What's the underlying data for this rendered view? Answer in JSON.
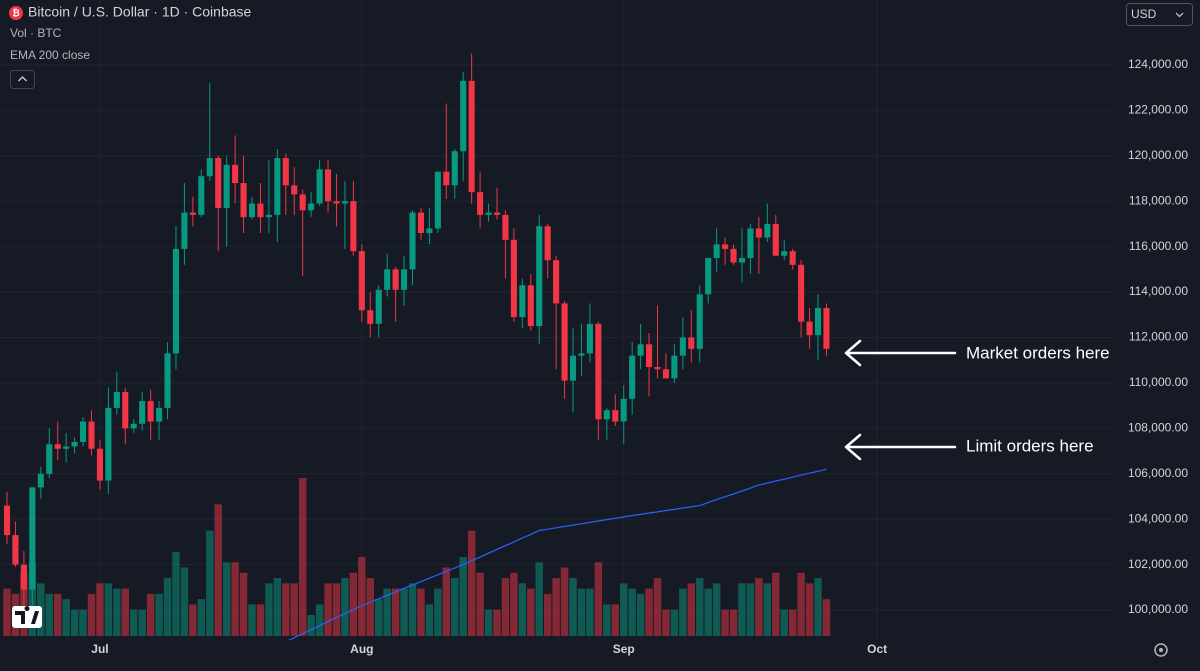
{
  "chart_data": {
    "type": "candlestick",
    "title": "Bitcoin / U.S. Dollar · 1D · Coinbase",
    "volume_label": "Vol · BTC",
    "currency": "USD",
    "up_color": "#089981",
    "down_color": "#f23645",
    "grid": true,
    "xlim": [
      -0.83,
      130.8
    ],
    "ylim": [
      98680,
      126860
    ],
    "xticks": [
      {
        "value": 11,
        "label": "Jul"
      },
      {
        "value": 42,
        "label": "Aug"
      },
      {
        "value": 73,
        "label": "Sep"
      },
      {
        "value": 103,
        "label": "Oct"
      }
    ],
    "yticks": [
      {
        "value": 100000,
        "label": "100,000.00"
      },
      {
        "value": 102000,
        "label": "102,000.00"
      },
      {
        "value": 104000,
        "label": "104,000.00"
      },
      {
        "value": 106000,
        "label": "106,000.00"
      },
      {
        "value": 108000,
        "label": "108,000.00"
      },
      {
        "value": 110000,
        "label": "110,000.00"
      },
      {
        "value": 112000,
        "label": "112,000.00"
      },
      {
        "value": 114000,
        "label": "114,000.00"
      },
      {
        "value": 116000,
        "label": "116,000.00"
      },
      {
        "value": 118000,
        "label": "118,000.00"
      },
      {
        "value": 120000,
        "label": "120,000.00"
      },
      {
        "value": 122000,
        "label": "122,000.00"
      },
      {
        "value": 124000,
        "label": "124,000.00"
      }
    ],
    "open": [
      104600,
      103300,
      102000,
      100900,
      105400,
      106000,
      107300,
      107100,
      107200,
      107400,
      108300,
      107100,
      105700,
      108900,
      109600,
      108000,
      108200,
      109200,
      108300,
      108900,
      111300,
      115900,
      117500,
      117400,
      119100,
      119900,
      117700,
      119600,
      118800,
      117300,
      117900,
      117300,
      117400,
      119900,
      118700,
      118300,
      117600,
      117900,
      119400,
      118000,
      117900,
      118000,
      115800,
      113200,
      112600,
      114100,
      115000,
      114100,
      115000,
      117500,
      116600,
      116800,
      119300,
      118700,
      120200,
      123300,
      118400,
      117400,
      117500,
      117400,
      116300,
      112900,
      114300,
      112500,
      116900,
      115400,
      113500,
      110100,
      111200,
      111300,
      112600,
      108400,
      108800,
      108300,
      109300,
      111200,
      111700,
      110700,
      110600,
      110200,
      111200,
      112000,
      111500,
      113900,
      115500,
      116100,
      115900,
      115300,
      115500,
      116800,
      116400,
      117000,
      115600,
      115800,
      115200,
      112700,
      112100,
      113300
    ],
    "high": [
      105200,
      103900,
      102600,
      105400,
      106300,
      108000,
      108300,
      107800,
      107600,
      108500,
      108800,
      107500,
      109800,
      110500,
      109800,
      108400,
      109600,
      109700,
      109200,
      111800,
      116900,
      118800,
      118200,
      119400,
      123200,
      120000,
      120000,
      120900,
      120000,
      118200,
      118800,
      119800,
      120300,
      120100,
      119500,
      118500,
      118400,
      119800,
      119800,
      119200,
      118900,
      118900,
      116100,
      114000,
      114300,
      115700,
      115100,
      115600,
      117600,
      117700,
      117700,
      119300,
      122300,
      120300,
      123700,
      124500,
      119300,
      117900,
      118600,
      117600,
      116800,
      114600,
      114800,
      117400,
      117000,
      115600,
      113600,
      112400,
      112600,
      113500,
      112700,
      108900,
      109500,
      109900,
      111800,
      112600,
      112200,
      113400,
      111300,
      111700,
      112900,
      113200,
      114300,
      115500,
      116800,
      116400,
      116100,
      116800,
      117000,
      117300,
      117900,
      117400,
      116300,
      115900,
      115400,
      113300,
      113900,
      113500
    ],
    "low": [
      102900,
      101900,
      99600,
      100000,
      104900,
      105800,
      106600,
      106500,
      106900,
      107200,
      106800,
      105300,
      105100,
      108600,
      107300,
      107800,
      107900,
      107500,
      107500,
      108400,
      110600,
      115200,
      116900,
      117300,
      118900,
      115800,
      116000,
      117900,
      116600,
      117200,
      116600,
      116600,
      116200,
      117400,
      117400,
      114700,
      117300,
      117800,
      117500,
      116900,
      115900,
      115600,
      112700,
      112000,
      112000,
      113800,
      112700,
      113400,
      114300,
      116300,
      116100,
      116600,
      118100,
      118100,
      118900,
      117900,
      116800,
      117100,
      117200,
      114600,
      112700,
      112400,
      112300,
      111700,
      114600,
      110600,
      109300,
      108700,
      110300,
      110900,
      107500,
      107500,
      108100,
      107300,
      108600,
      110600,
      109400,
      110200,
      110200,
      110000,
      110600,
      110900,
      110900,
      113500,
      114900,
      115200,
      115200,
      114400,
      114800,
      114800,
      116200,
      115600,
      115400,
      115000,
      112000,
      111500,
      111000,
      111200
    ],
    "close": [
      103300,
      102000,
      100900,
      105400,
      106000,
      107300,
      107100,
      107200,
      107400,
      108300,
      107100,
      105700,
      108900,
      109600,
      108000,
      108200,
      109200,
      108300,
      108900,
      111300,
      115900,
      117500,
      117400,
      119100,
      119900,
      117700,
      119600,
      118800,
      117300,
      117900,
      117300,
      117400,
      119900,
      118700,
      118300,
      117600,
      117900,
      119400,
      118000,
      117900,
      118000,
      115800,
      113200,
      112600,
      114100,
      115000,
      114100,
      115000,
      117500,
      116600,
      116800,
      119300,
      118700,
      120200,
      123300,
      118400,
      117400,
      117500,
      117400,
      116300,
      112900,
      114300,
      112500,
      116900,
      115400,
      113500,
      110100,
      111200,
      111300,
      112600,
      108400,
      108800,
      108300,
      109300,
      111200,
      111700,
      110700,
      110600,
      110200,
      111200,
      112000,
      111500,
      113900,
      115500,
      116100,
      115900,
      115300,
      115500,
      116800,
      116400,
      117000,
      115600,
      115800,
      115200,
      112700,
      112100,
      113300,
      111500
    ],
    "volume": [
      9,
      8,
      12,
      14,
      10,
      8,
      8,
      7,
      5,
      5,
      8,
      10,
      10,
      9,
      9,
      5,
      5,
      8,
      8,
      11,
      16,
      13,
      6,
      7,
      20,
      25,
      14,
      14,
      12,
      6,
      6,
      10,
      11,
      10,
      10,
      30,
      4,
      6,
      10,
      10,
      11,
      12,
      15,
      11,
      7,
      9,
      9,
      9,
      10,
      9,
      6,
      9,
      13,
      11,
      15,
      20,
      12,
      5,
      5,
      11,
      12,
      10,
      9,
      14,
      8,
      11,
      13,
      11,
      9,
      9,
      14,
      6,
      6,
      10,
      9,
      8,
      9,
      11,
      5,
      5,
      9,
      10,
      11,
      9,
      10,
      5,
      5,
      10,
      10,
      11,
      10,
      12,
      5,
      5,
      12,
      10,
      11,
      7
    ],
    "ema": {
      "name": "EMA 200 close",
      "color": "#2962ff",
      "values": [
        null,
        null,
        null,
        null,
        null,
        null,
        null,
        null,
        null,
        null,
        null,
        null,
        null,
        null,
        null,
        null,
        null,
        null,
        null,
        null,
        null,
        null,
        null,
        null,
        null,
        null,
        null,
        null,
        null,
        null,
        null,
        null,
        null,
        98600,
        98780,
        98960,
        99130,
        99310,
        99490,
        99670,
        99840,
        100020,
        100200,
        100350,
        100500,
        100650,
        100800,
        100950,
        101100,
        101250,
        101400,
        101550,
        101700,
        101850,
        102000,
        102170,
        102330,
        102500,
        102670,
        102830,
        103000,
        103170,
        103330,
        103500,
        103560,
        103620,
        103680,
        103740,
        103800,
        103860,
        103920,
        103980,
        104040,
        104100,
        104160,
        104210,
        104270,
        104320,
        104380,
        104430,
        104490,
        104540,
        104600,
        104730,
        104860,
        104990,
        105110,
        105240,
        105370,
        105500,
        105590,
        105680,
        105760,
        105850,
        105940,
        106030,
        106110,
        106200
      ]
    },
    "annotations": [
      "Market orders here",
      "Limit orders here"
    ]
  }
}
